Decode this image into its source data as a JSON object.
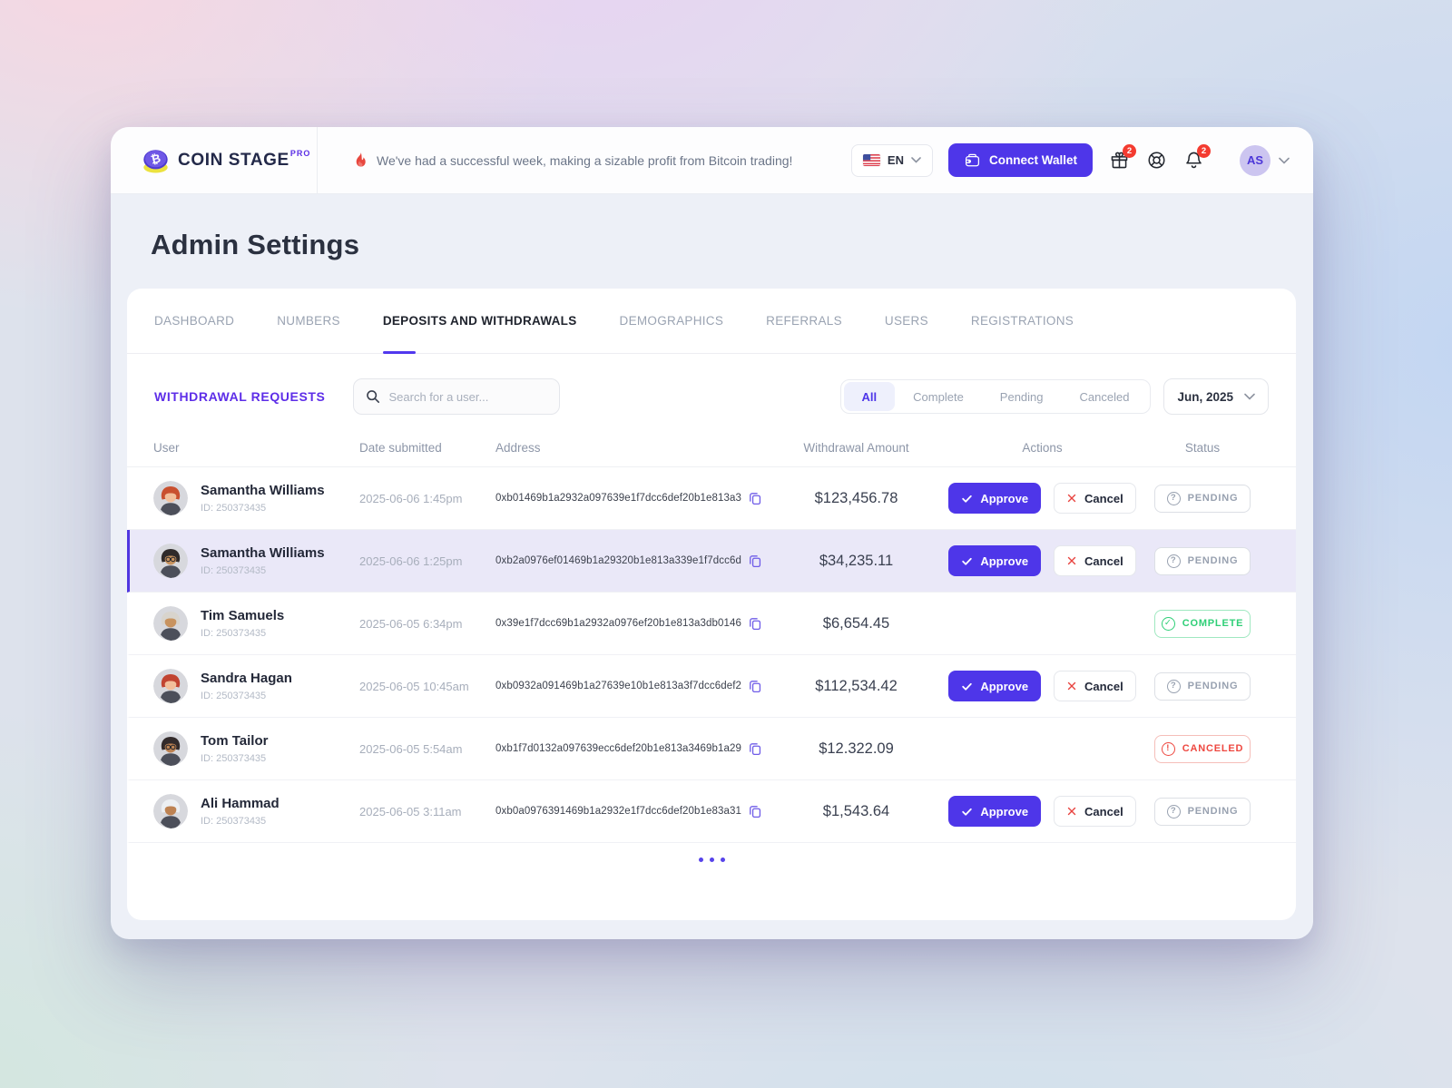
{
  "brand": {
    "wordmark": "COIN STAGE",
    "pro": "PRO",
    "coin_symbol": "₿"
  },
  "header": {
    "announcement": "We've had a successful week, making a sizable profit from Bitcoin trading!",
    "language": "EN",
    "connect_wallet_label": "Connect Wallet",
    "gift_badge": "2",
    "bell_badge": "2",
    "avatar_initials": "AS"
  },
  "page_title": "Admin Settings",
  "tabs": [
    {
      "label": "DASHBOARD",
      "active": false
    },
    {
      "label": "NUMBERS",
      "active": false
    },
    {
      "label": "DEPOSITS AND WITHDRAWALS",
      "active": true
    },
    {
      "label": "DEMOGRAPHICS",
      "active": false
    },
    {
      "label": "REFERRALS",
      "active": false
    },
    {
      "label": "USERS",
      "active": false
    },
    {
      "label": "REGISTRATIONS",
      "active": false
    }
  ],
  "section": {
    "title": "WITHDRAWAL REQUESTS",
    "search_placeholder": "Search for a user...",
    "filters": [
      {
        "label": "All",
        "active": true
      },
      {
        "label": "Complete",
        "active": false
      },
      {
        "label": "Pending",
        "active": false
      },
      {
        "label": "Canceled",
        "active": false
      }
    ],
    "date_filter": "Jun, 2025"
  },
  "table": {
    "columns": [
      "User",
      "Date submitted",
      "Address",
      "Withdrawal Amount",
      "Actions",
      "Status"
    ],
    "approve_label": "Approve",
    "cancel_label": "Cancel",
    "status_icons": {
      "pending": "?",
      "complete": "✓",
      "canceled": "!"
    },
    "rows": [
      {
        "name": "Samantha Williams",
        "id": "ID: 250373435",
        "date": "2025-06-06 1:45pm",
        "address": "0xb01469b1a2932a097639e1f7dcc6def20b1e813a3",
        "amount": "$123,456.78",
        "status": "PENDING",
        "status_type": "pending",
        "has_actions": true,
        "highlighted": false,
        "avatar": {
          "hair": "#c9502f",
          "skin": "#f2bf9b",
          "glasses": false
        }
      },
      {
        "name": "Samantha Williams",
        "id": "ID: 250373435",
        "date": "2025-06-06 1:25pm",
        "address": "0xb2a0976ef01469b1a29320b1e813a339e1f7dcc6d",
        "amount": "$34,235.11",
        "status": "PENDING",
        "status_type": "pending",
        "has_actions": true,
        "highlighted": true,
        "avatar": {
          "hair": "#2f2a2a",
          "skin": "#c8935f",
          "glasses": true
        }
      },
      {
        "name": "Tim Samuels",
        "id": "ID: 250373435",
        "date": "2025-06-05 6:34pm",
        "address": "0x39e1f7dcc69b1a2932a0976ef20b1e813a3db0146",
        "amount": "$6,654.45",
        "status": "COMPLETE",
        "status_type": "complete",
        "has_actions": false,
        "highlighted": false,
        "avatar": {
          "hair": "#d8d4cd",
          "skin": "#c8935f",
          "glasses": false
        }
      },
      {
        "name": "Sandra Hagan",
        "id": "ID: 250373435",
        "date": "2025-06-05 10:45am",
        "address": "0xb0932a091469b1a27639e10b1e813a3f7dcc6def2",
        "amount": "$112,534.42",
        "status": "PENDING",
        "status_type": "pending",
        "has_actions": true,
        "highlighted": false,
        "avatar": {
          "hair": "#c14431",
          "skin": "#f2bf9b",
          "glasses": false
        }
      },
      {
        "name": "Tom Tailor",
        "id": "ID: 250373435",
        "date": "2025-06-05 5:54am",
        "address": "0xb1f7d0132a097639ecc6def20b1e813a3469b1a29",
        "amount": "$12.322.09",
        "status": "CANCELED",
        "status_type": "canceled",
        "has_actions": false,
        "highlighted": false,
        "avatar": {
          "hair": "#332b2b",
          "skin": "#bd8252",
          "glasses": true
        }
      },
      {
        "name": "Ali Hammad",
        "id": "ID: 250373435",
        "date": "2025-06-05 3:11am",
        "address": "0xb0a0976391469b1a2932e1f7dcc6def20b1e83a31",
        "amount": "$1,543.64",
        "status": "PENDING",
        "status_type": "pending",
        "has_actions": true,
        "highlighted": false,
        "avatar": {
          "hair": "#eceff2",
          "skin": "#bd8252",
          "glasses": false
        }
      }
    ]
  },
  "colors": {
    "primary": "#4e36e9",
    "complete": "#2fcf77",
    "canceled": "#ee4840",
    "badge": "#f43b30"
  }
}
